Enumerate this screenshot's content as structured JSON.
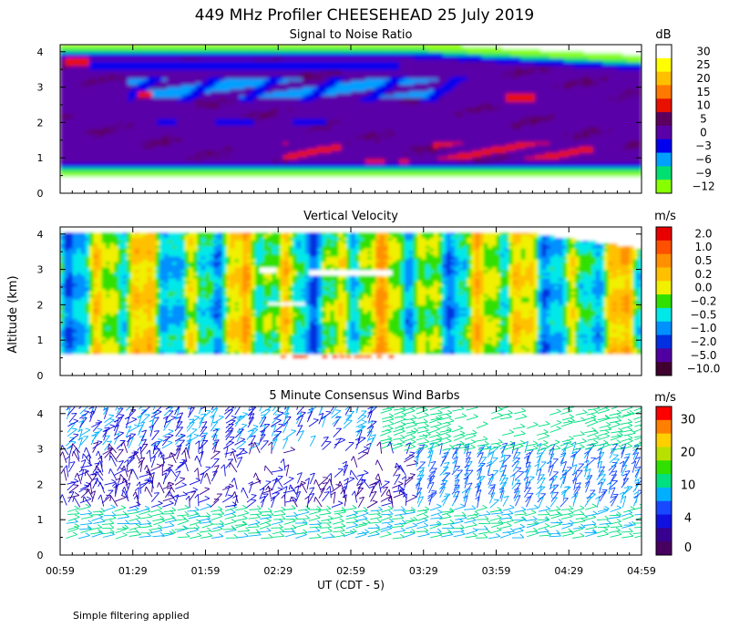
{
  "title": "449 MHz Profiler CHEESEHEAD 25 July 2019",
  "ylabel": "Altitude (km)",
  "xlabel": "UT  (CDT - 5)",
  "footer": "Simple filtering applied",
  "x_ticks": [
    "00:59",
    "01:29",
    "01:59",
    "02:29",
    "02:59",
    "03:29",
    "03:59",
    "04:29",
    "04:59"
  ],
  "y_ticks": [
    "0",
    "1",
    "2",
    "3",
    "4"
  ],
  "chart_data": [
    {
      "type": "heatmap",
      "title": "Signal to Noise Ratio",
      "unit": "dB",
      "x_range": [
        "00:59",
        "04:59"
      ],
      "ylim": [
        0,
        4
      ],
      "colorbar": {
        "labels": [
          "30",
          "25",
          "20",
          "15",
          "10",
          "5",
          "0",
          "−3",
          "−6",
          "−9",
          "−12"
        ],
        "colors": [
          "#ffffff",
          "#ffff00",
          "#ffc000",
          "#ff7800",
          "#e81000",
          "#5c0060",
          "#5a00a8",
          "#0000ee",
          "#00a0ff",
          "#00e070",
          "#88ff00"
        ]
      },
      "features": [
        {
          "altitude_km": [
            0.0,
            0.5
          ],
          "snr_db": "no data"
        },
        {
          "altitude_km": [
            0.5,
            0.65
          ],
          "snr_db": -12
        },
        {
          "altitude_km": [
            0.65,
            3.9
          ],
          "snr_db": 2
        },
        {
          "altitude_km": [
            3.9,
            4.1
          ],
          "snr_db": -3
        },
        {
          "altitude_km": [
            1.0,
            1.4
          ],
          "time": [
            "02:00",
            "04:15"
          ],
          "snr_db": 10
        },
        {
          "altitude_km": [
            2.7,
            3.2
          ],
          "time": [
            "01:15",
            "03:30"
          ],
          "snr_db": -6
        }
      ]
    },
    {
      "type": "heatmap",
      "title": "Vertical Velocity",
      "unit": "m/s",
      "x_range": [
        "00:59",
        "04:59"
      ],
      "ylim": [
        0,
        4
      ],
      "colorbar": {
        "labels": [
          "2.0",
          "1.0",
          "0.5",
          "0.2",
          "0.0",
          "−0.2",
          "−0.5",
          "−1.0",
          "−2.0",
          "−5.0",
          "−10.0"
        ],
        "colors": [
          "#e80000",
          "#ff5000",
          "#ff9000",
          "#ffc000",
          "#f0f000",
          "#30e000",
          "#00e8e8",
          "#0090ff",
          "#0030e0",
          "#5000a0",
          "#400030"
        ]
      },
      "features": [
        {
          "altitude_km": [
            0.0,
            0.6
          ],
          "velocity_ms": "no data"
        },
        {
          "altitude_km": [
            0.6,
            4.0
          ],
          "velocity_ms_range": [
            -1.0,
            0.5
          ]
        }
      ]
    },
    {
      "type": "scatter",
      "title": "5 Minute Consensus Wind Barbs",
      "unit": "m/s",
      "x_range": [
        "00:59",
        "04:59"
      ],
      "ylim": [
        0,
        4
      ],
      "interval_minutes": 5,
      "colorbar": {
        "labels": [
          "30",
          "20",
          "10",
          "4",
          "0"
        ],
        "colors": [
          "#ff0000",
          "#ff8000",
          "#ffd000",
          "#b8e000",
          "#30e000",
          "#00e080",
          "#00b0ff",
          "#1848ff",
          "#1010e0",
          "#380090",
          "#480060"
        ]
      },
      "features": [
        {
          "altitude_km": [
            0.5,
            1.3
          ],
          "speed_ms": [
            8,
            12
          ]
        },
        {
          "altitude_km": [
            1.3,
            3.0
          ],
          "speed_ms": [
            0,
            6
          ]
        },
        {
          "altitude_km": [
            2.5,
            4.1
          ],
          "speed_ms": [
            6,
            10
          ]
        }
      ]
    }
  ]
}
